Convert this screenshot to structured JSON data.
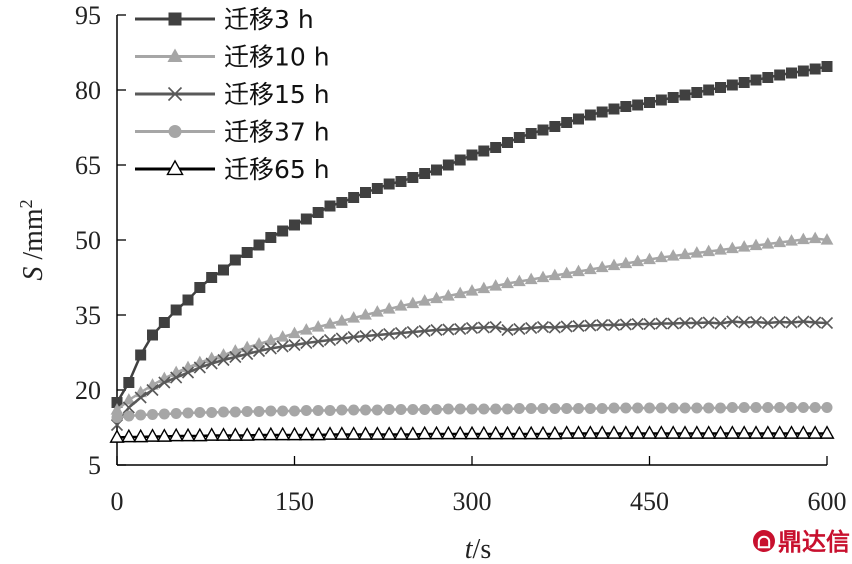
{
  "chart_data": {
    "type": "line",
    "title": "",
    "xlabel_var": "t",
    "xlabel_unit": "/s",
    "ylabel_var": "S",
    "ylabel_unit": " /mm",
    "ylabel_sup": "2",
    "xlim": [
      0,
      600
    ],
    "ylim": [
      5,
      95
    ],
    "xticks": [
      0,
      150,
      300,
      450,
      600
    ],
    "yticks": [
      5,
      20,
      35,
      50,
      65,
      80,
      95
    ],
    "grid": false,
    "legend_position": "top-left",
    "x": [
      0,
      10,
      20,
      30,
      40,
      50,
      60,
      70,
      80,
      90,
      100,
      110,
      120,
      130,
      140,
      150,
      160,
      170,
      180,
      190,
      200,
      210,
      220,
      230,
      240,
      250,
      260,
      270,
      280,
      290,
      300,
      310,
      320,
      330,
      340,
      350,
      360,
      370,
      380,
      390,
      400,
      410,
      420,
      430,
      440,
      450,
      460,
      470,
      480,
      490,
      500,
      510,
      520,
      530,
      540,
      550,
      560,
      570,
      580,
      590,
      600
    ],
    "series": [
      {
        "name": "迁移3 h",
        "marker": "square",
        "color": "#404040",
        "values": [
          17.5,
          21.5,
          27.0,
          31.0,
          33.5,
          36.0,
          38.0,
          40.5,
          42.5,
          44.0,
          46.0,
          47.5,
          49.0,
          50.5,
          51.8,
          53.0,
          54.2,
          55.5,
          56.8,
          57.5,
          58.5,
          59.5,
          60.3,
          61.2,
          61.7,
          62.5,
          63.3,
          64.0,
          65.0,
          66.0,
          67.0,
          67.8,
          68.5,
          69.5,
          70.5,
          71.3,
          72.0,
          72.7,
          73.5,
          74.2,
          75.0,
          75.6,
          76.2,
          76.7,
          77.0,
          77.5,
          78.0,
          78.5,
          79.0,
          79.5,
          80.0,
          80.5,
          81.0,
          81.5,
          82.0,
          82.5,
          83.0,
          83.4,
          83.8,
          84.2,
          84.7
        ]
      },
      {
        "name": "迁移10 h",
        "marker": "triangle",
        "color": "#a6a6a6",
        "values": [
          16.0,
          18.0,
          19.5,
          21.0,
          22.3,
          23.5,
          24.5,
          25.5,
          26.3,
          27.0,
          27.8,
          28.5,
          29.2,
          29.9,
          30.6,
          31.3,
          32.0,
          32.6,
          33.2,
          33.8,
          34.4,
          35.0,
          35.6,
          36.2,
          36.8,
          37.3,
          37.8,
          38.3,
          38.8,
          39.3,
          39.8,
          40.3,
          40.8,
          41.3,
          41.7,
          42.1,
          42.5,
          42.9,
          43.3,
          43.7,
          44.1,
          44.5,
          44.9,
          45.3,
          45.7,
          46.1,
          46.5,
          46.8,
          47.1,
          47.4,
          47.7,
          48.0,
          48.3,
          48.6,
          48.9,
          49.2,
          49.5,
          49.8,
          50.1,
          50.3,
          50.0
        ]
      },
      {
        "name": "迁移15 h",
        "marker": "x",
        "color": "#595959",
        "values": [
          13.0,
          16.5,
          18.5,
          20.0,
          21.5,
          22.5,
          23.5,
          24.5,
          25.3,
          26.0,
          26.6,
          27.2,
          27.8,
          28.3,
          28.7,
          29.0,
          29.4,
          29.7,
          30.0,
          30.3,
          30.6,
          30.8,
          31.0,
          31.2,
          31.4,
          31.6,
          31.8,
          32.0,
          32.1,
          32.2,
          32.4,
          32.5,
          32.6,
          32.0,
          32.2,
          32.4,
          32.6,
          32.5,
          32.7,
          32.8,
          32.9,
          33.0,
          33.0,
          33.1,
          33.2,
          33.2,
          33.3,
          33.3,
          33.4,
          33.4,
          33.5,
          33.3,
          33.7,
          33.5,
          33.6,
          33.4,
          33.6,
          33.5,
          33.7,
          33.5,
          33.4
        ]
      },
      {
        "name": "迁移37 h",
        "marker": "circle",
        "color": "#a6a6a6",
        "values": [
          14.5,
          14.8,
          15.0,
          15.1,
          15.2,
          15.3,
          15.4,
          15.5,
          15.5,
          15.6,
          15.6,
          15.7,
          15.7,
          15.8,
          15.8,
          15.8,
          15.9,
          15.9,
          15.9,
          16.0,
          16.0,
          16.0,
          16.0,
          16.1,
          16.1,
          16.1,
          16.1,
          16.1,
          16.2,
          16.2,
          16.2,
          16.2,
          16.2,
          16.2,
          16.3,
          16.3,
          16.3,
          16.3,
          16.3,
          16.3,
          16.3,
          16.3,
          16.4,
          16.4,
          16.4,
          16.4,
          16.4,
          16.4,
          16.4,
          16.4,
          16.4,
          16.4,
          16.5,
          16.5,
          16.5,
          16.5,
          16.5,
          16.5,
          16.5,
          16.5,
          16.5
        ]
      },
      {
        "name": "迁移65 h",
        "marker": "open-triangle",
        "color": "#000000",
        "values": [
          10.5,
          10.6,
          10.6,
          10.7,
          10.7,
          10.8,
          10.8,
          10.8,
          10.9,
          10.9,
          10.9,
          10.9,
          11.0,
          11.0,
          11.0,
          11.0,
          11.0,
          11.0,
          11.1,
          11.1,
          11.1,
          11.1,
          11.1,
          11.1,
          11.1,
          11.1,
          11.2,
          11.2,
          11.2,
          11.2,
          11.2,
          11.2,
          11.2,
          11.2,
          11.2,
          11.2,
          11.2,
          11.2,
          11.3,
          11.3,
          11.3,
          11.3,
          11.3,
          11.3,
          11.3,
          11.3,
          11.3,
          11.3,
          11.3,
          11.3,
          11.3,
          11.3,
          11.3,
          11.3,
          11.3,
          11.3,
          11.3,
          11.3,
          11.3,
          11.3,
          11.3
        ]
      }
    ]
  },
  "watermark": {
    "text": "鼎达信",
    "color": "#c8102e"
  }
}
